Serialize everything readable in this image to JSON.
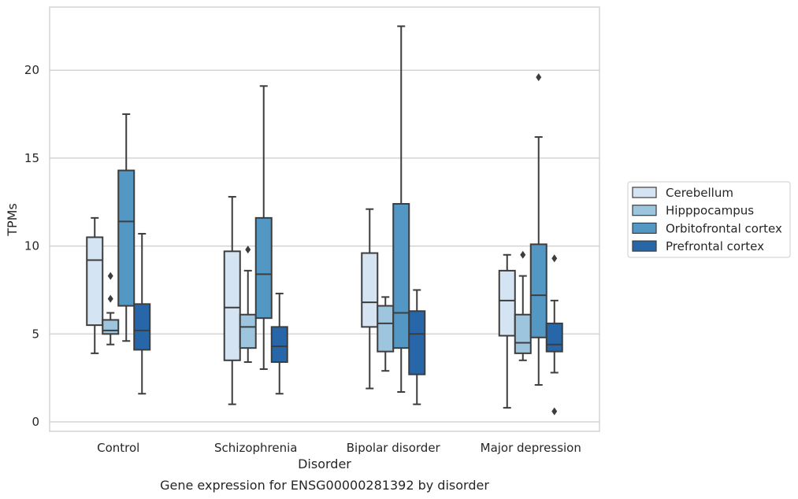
{
  "caption": "Gene expression for ENSG00000281392 by disorder",
  "chart_data": {
    "type": "box",
    "title": "",
    "xlabel": "Disorder",
    "ylabel": "TPMs",
    "ylim": [
      -0.5,
      23.5
    ],
    "yticks": [
      0,
      5,
      10,
      15,
      20
    ],
    "ytick_labels": [
      "0",
      "5",
      "10",
      "15",
      "20"
    ],
    "grid": "horizontal",
    "legend_position": "outside-right",
    "categories": [
      "Control",
      "Schizophrenia",
      "Bipolar disorder",
      "Major depression"
    ],
    "series": [
      {
        "name": "Cerebellum",
        "color": "#d5e4f3",
        "boxes": [
          {
            "q1": 5.5,
            "median": 9.2,
            "q3": 10.5,
            "whislo": 3.9,
            "whishi": 11.6,
            "fliers": []
          },
          {
            "q1": 3.5,
            "median": 6.5,
            "q3": 9.7,
            "whislo": 1.0,
            "whishi": 12.8,
            "fliers": []
          },
          {
            "q1": 5.4,
            "median": 6.8,
            "q3": 9.6,
            "whislo": 1.9,
            "whishi": 12.1,
            "fliers": []
          },
          {
            "q1": 4.9,
            "median": 6.9,
            "q3": 8.6,
            "whislo": 0.8,
            "whishi": 9.5,
            "fliers": []
          }
        ]
      },
      {
        "name": "Hipppocampus",
        "color": "#9dc5de",
        "boxes": [
          {
            "q1": 5.0,
            "median": 5.2,
            "q3": 5.8,
            "whislo": 4.4,
            "whishi": 6.2,
            "fliers": [
              7.0,
              8.3
            ]
          },
          {
            "q1": 4.2,
            "median": 5.4,
            "q3": 6.1,
            "whislo": 3.4,
            "whishi": 8.6,
            "fliers": [
              9.8
            ]
          },
          {
            "q1": 4.0,
            "median": 5.6,
            "q3": 6.6,
            "whislo": 2.9,
            "whishi": 7.1,
            "fliers": []
          },
          {
            "q1": 3.9,
            "median": 4.5,
            "q3": 6.1,
            "whislo": 3.5,
            "whishi": 8.3,
            "fliers": [
              9.5
            ]
          }
        ]
      },
      {
        "name": "Orbitofrontal cortex",
        "color": "#5397c5",
        "boxes": [
          {
            "q1": 6.6,
            "median": 11.4,
            "q3": 14.3,
            "whislo": 4.6,
            "whishi": 17.5,
            "fliers": []
          },
          {
            "q1": 5.9,
            "median": 8.4,
            "q3": 11.6,
            "whislo": 3.0,
            "whishi": 19.1,
            "fliers": []
          },
          {
            "q1": 4.2,
            "median": 6.2,
            "q3": 12.4,
            "whislo": 1.7,
            "whishi": 22.5,
            "fliers": []
          },
          {
            "q1": 4.8,
            "median": 7.2,
            "q3": 10.1,
            "whislo": 2.1,
            "whishi": 16.2,
            "fliers": [
              19.6
            ]
          }
        ]
      },
      {
        "name": "Prefrontal cortex",
        "color": "#2767a9",
        "boxes": [
          {
            "q1": 4.1,
            "median": 5.2,
            "q3": 6.7,
            "whislo": 1.6,
            "whishi": 10.7,
            "fliers": []
          },
          {
            "q1": 3.4,
            "median": 4.3,
            "q3": 5.4,
            "whislo": 1.6,
            "whishi": 7.3,
            "fliers": []
          },
          {
            "q1": 2.7,
            "median": 5.0,
            "q3": 6.3,
            "whislo": 1.0,
            "whishi": 7.5,
            "fliers": []
          },
          {
            "q1": 4.0,
            "median": 4.4,
            "q3": 5.6,
            "whislo": 2.8,
            "whishi": 6.9,
            "fliers": [
              9.3,
              0.6
            ]
          }
        ]
      }
    ]
  }
}
